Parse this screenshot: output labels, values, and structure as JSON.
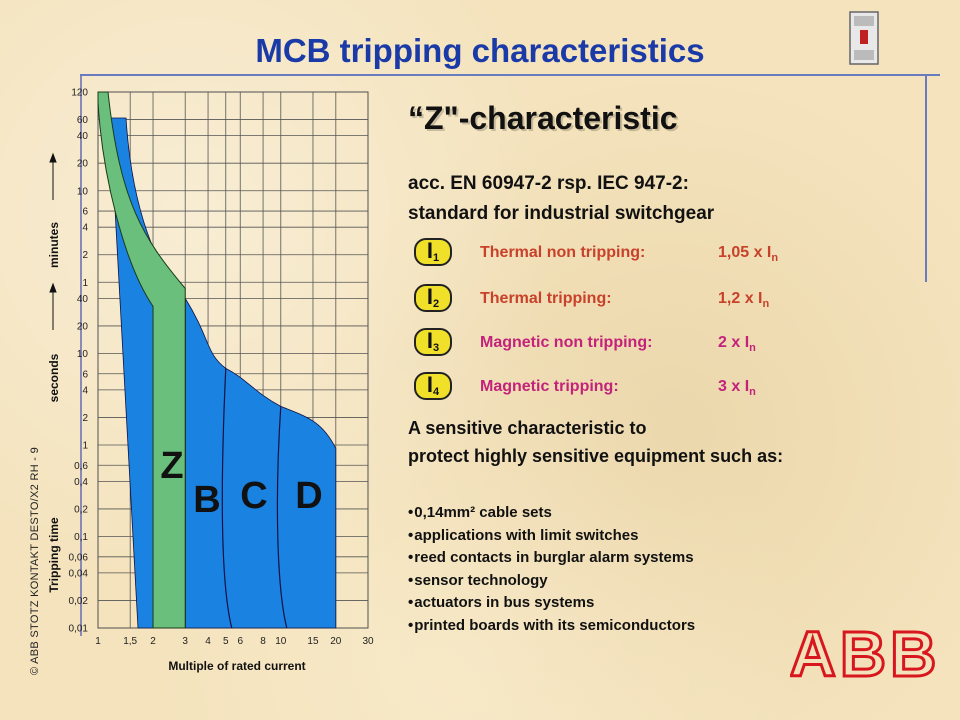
{
  "header": {
    "title": "MCB tripping characteristics"
  },
  "footer": {
    "copyright": "© ABB STOTZ KONTAKT DESTO/X2 RH - 9"
  },
  "main": {
    "heading": "“Z\"-characteristic",
    "standard_line1": "acc. EN 60947-2 rsp. IEC 947-2:",
    "standard_line2": "standard for industrial switchgear",
    "rows": [
      {
        "badge": "I",
        "badge_sub": "1",
        "label": "Thermal  non tripping:",
        "value": "1,05 x I",
        "value_sub": "n"
      },
      {
        "badge": "I",
        "badge_sub": "2",
        "label": "Thermal  tripping:",
        "value": "1,2 x I",
        "value_sub": "n"
      },
      {
        "badge": "I",
        "badge_sub": "3",
        "label": "Magnetic non tripping:",
        "value": "2 x I",
        "value_sub": "n"
      },
      {
        "badge": "I",
        "badge_sub": "4",
        "label": "Magnetic tripping:",
        "value": "3 x I",
        "value_sub": "n"
      }
    ],
    "sensitive_line1": "A sensitive characteristic to",
    "sensitive_line2": "protect highly sensitive equipment such as:",
    "bullets": [
      "0,14mm² cable sets",
      "applications with limit switches",
      "reed contacts in burglar alarm systems",
      "sensor technology",
      "actuators in bus systems",
      "printed boards with its semiconductors"
    ],
    "logo_text": "ABB"
  },
  "colors": {
    "title": "#1a3aa8",
    "z_band": "#6bbf7c",
    "bcd_band": "#1a82e0",
    "badge": "#f0e02a",
    "thermal": "#c8412a",
    "magnetic": "#c4227a"
  },
  "chart_data": {
    "type": "area",
    "xlabel": "Multiple of rated current",
    "ylabel": "Tripping time",
    "ylabel_units": [
      "seconds",
      "minutes"
    ],
    "x_ticks": [
      "1",
      "1,5",
      "2",
      "3",
      "4",
      "5",
      "6",
      "8",
      "10",
      "15",
      "20",
      "30"
    ],
    "x_tick_values": [
      1,
      1.5,
      2,
      3,
      4,
      5,
      6,
      8,
      10,
      15,
      20,
      30
    ],
    "minute_ticks": [
      "120",
      "60",
      "40",
      "20",
      "10",
      "6",
      "4",
      "2",
      "1"
    ],
    "second_ticks": [
      "40",
      "20",
      "10",
      "6",
      "4",
      "2",
      "1",
      "0,6",
      "0,4",
      "0,2",
      "0,1",
      "0,06",
      "0,04",
      "0,02",
      "0,01"
    ],
    "xlim": [
      1,
      30
    ],
    "ylim_seconds": [
      0.01,
      7200
    ],
    "x_scale": "log",
    "y_scale": "log",
    "series": [
      {
        "name": "Z",
        "magnetic_range_x": [
          2,
          3
        ]
      },
      {
        "name": "B",
        "magnetic_range_x": [
          3,
          5
        ]
      },
      {
        "name": "C",
        "magnetic_range_x": [
          5,
          10
        ]
      },
      {
        "name": "D",
        "magnetic_range_x": [
          10,
          20
        ]
      }
    ]
  }
}
